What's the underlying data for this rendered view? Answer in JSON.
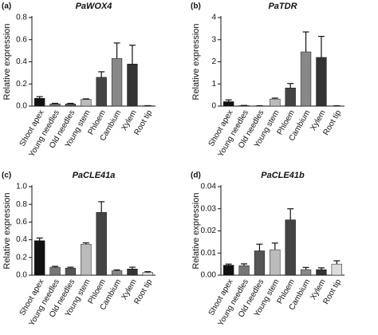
{
  "chart_data": [
    {
      "type": "bar",
      "label": "(a)",
      "title": "PaWOX4",
      "y_label": "Relative expression",
      "categories": [
        "Shoot apex",
        "Young needles",
        "Old needles",
        "Young stem",
        "Phloem",
        "Cambium",
        "Xylem",
        "Root tip"
      ],
      "values": [
        0.07,
        0.02,
        0.02,
        0.06,
        0.26,
        0.43,
        0.38,
        0.003
      ],
      "errors": [
        0.015,
        0.005,
        0.005,
        0.005,
        0.05,
        0.14,
        0.17,
        0.001
      ],
      "colors": [
        "#111111",
        "#777777",
        "#555555",
        "#bbbbbb",
        "#444444",
        "#888888",
        "#333333",
        "#111111"
      ],
      "ylim": [
        0,
        0.8
      ],
      "yticks": [
        {
          "value": 0,
          "label": "0.0"
        },
        0.2,
        0.4,
        0.6,
        0.8
      ]
    },
    {
      "type": "bar",
      "label": "(b)",
      "title": "PaTDR",
      "y_label": "Relative expression",
      "categories": [
        "Shoot apex",
        "Young needles",
        "Old needles",
        "Young stem",
        "Phloem",
        "Cambium",
        "Xylem",
        "Root tip"
      ],
      "values": [
        0.2,
        0.02,
        0.01,
        0.32,
        0.82,
        2.45,
        2.2,
        0.01
      ],
      "errors": [
        0.08,
        0.01,
        0.005,
        0.04,
        0.2,
        0.9,
        0.95,
        0.005
      ],
      "colors": [
        "#111111",
        "#777777",
        "#555555",
        "#bbbbbb",
        "#444444",
        "#888888",
        "#333333",
        "#111111"
      ],
      "ylim": [
        0,
        4
      ],
      "yticks": [
        0,
        1,
        2,
        3,
        4
      ]
    },
    {
      "type": "bar",
      "label": "(c)",
      "title": "PaCLE41a",
      "y_label": "Relative expression",
      "categories": [
        "Shoot apex",
        "Young needles",
        "Old needles",
        "Young stem",
        "Phloem",
        "Cambium",
        "Xylem",
        "Root tip"
      ],
      "values": [
        0.39,
        0.09,
        0.08,
        0.35,
        0.71,
        0.05,
        0.07,
        0.03
      ],
      "errors": [
        0.03,
        0.01,
        0.01,
        0.015,
        0.12,
        0.01,
        0.02,
        0.01
      ],
      "colors": [
        "#111111",
        "#777777",
        "#555555",
        "#bbbbbb",
        "#444444",
        "#888888",
        "#333333",
        "#dddddd"
      ],
      "ylim": [
        0,
        1.0
      ],
      "yticks": [
        {
          "value": 0,
          "label": "0.0"
        },
        0.2,
        0.4,
        0.6,
        0.8,
        {
          "value": 1.0,
          "label": "1.0"
        }
      ]
    },
    {
      "type": "bar",
      "label": "(d)",
      "title": "PaCLE41b",
      "y_label": "Relative expression",
      "categories": [
        "Shoot apex",
        "Young needles",
        "Old needles",
        "Young stem",
        "Phloem",
        "Cambium",
        "Xylem",
        "Root tip"
      ],
      "values": [
        0.0045,
        0.0043,
        0.011,
        0.0115,
        0.025,
        0.0025,
        0.0025,
        0.005
      ],
      "errors": [
        0.0005,
        0.0008,
        0.003,
        0.003,
        0.005,
        0.001,
        0.0008,
        0.0015
      ],
      "colors": [
        "#111111",
        "#777777",
        "#555555",
        "#bbbbbb",
        "#444444",
        "#888888",
        "#333333",
        "#dddddd"
      ],
      "ylim": [
        0,
        0.04
      ],
      "yticks": [
        {
          "value": 0,
          "label": "0.00"
        },
        0.01,
        0.02,
        0.03,
        0.04
      ]
    }
  ]
}
